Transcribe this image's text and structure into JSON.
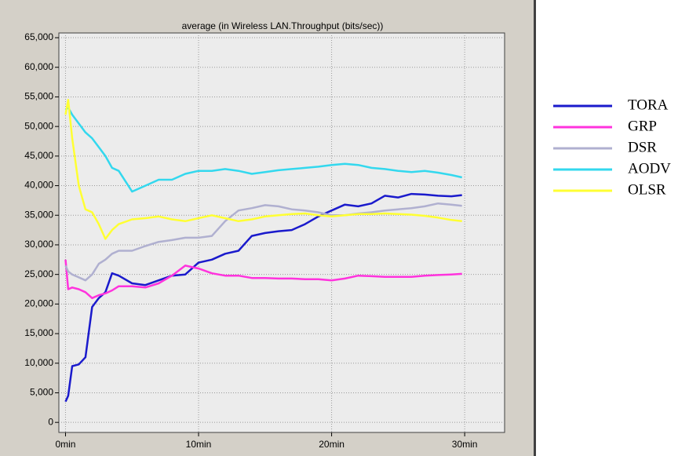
{
  "chart_data": {
    "type": "line",
    "title": "average (in Wireless LAN.Throughput (bits/sec))",
    "x": [
      0,
      0.2,
      0.5,
      1,
      1.5,
      2,
      2.5,
      3,
      3.5,
      4,
      5,
      6,
      7,
      8,
      9,
      10,
      11,
      12,
      13,
      14,
      15,
      16,
      17,
      18,
      19,
      20,
      21,
      22,
      23,
      24,
      25,
      26,
      27,
      28,
      29,
      29.8
    ],
    "series": [
      {
        "name": "TORA",
        "color": "#1a1acc",
        "values": [
          3500,
          4500,
          9500,
          9800,
          11000,
          19500,
          21000,
          22000,
          25200,
          24800,
          23500,
          23200,
          24000,
          24800,
          25000,
          27000,
          27500,
          28500,
          29000,
          31500,
          32000,
          32300,
          32500,
          33500,
          34800,
          35800,
          36800,
          36500,
          37000,
          38300,
          38000,
          38600,
          38500,
          38300,
          38200,
          38400
        ]
      },
      {
        "name": "GRP",
        "color": "#ff33dd",
        "values": [
          27500,
          22500,
          22800,
          22500,
          22000,
          21000,
          21500,
          21800,
          22300,
          23000,
          23000,
          22800,
          23500,
          24800,
          26500,
          26000,
          25200,
          24800,
          24800,
          24400,
          24400,
          24300,
          24300,
          24200,
          24200,
          24000,
          24300,
          24800,
          24700,
          24600,
          24600,
          24600,
          24800,
          24900,
          25000,
          25100
        ]
      },
      {
        "name": "DSR",
        "color": "#b0b0d0",
        "values": [
          26500,
          25500,
          25000,
          24500,
          24000,
          25000,
          26800,
          27500,
          28500,
          29000,
          29000,
          29800,
          30500,
          30800,
          31200,
          31200,
          31500,
          34000,
          35800,
          36200,
          36700,
          36500,
          36000,
          35800,
          35500,
          35000,
          35000,
          35300,
          35500,
          35800,
          36000,
          36200,
          36500,
          37000,
          36800,
          36600
        ]
      },
      {
        "name": "AODV",
        "color": "#33d8ee",
        "values": [
          52800,
          53200,
          52000,
          50500,
          49000,
          48000,
          46500,
          45000,
          43000,
          42500,
          39000,
          40000,
          41000,
          41000,
          42000,
          42500,
          42500,
          42800,
          42500,
          42000,
          42300,
          42600,
          42800,
          43000,
          43200,
          43500,
          43700,
          43500,
          43000,
          42800,
          42500,
          42300,
          42500,
          42200,
          41800,
          41400
        ]
      },
      {
        "name": "OLSR",
        "color": "#ffff33",
        "values": [
          52000,
          54500,
          48000,
          40000,
          36000,
          35500,
          33500,
          31000,
          32500,
          33500,
          34300,
          34500,
          34800,
          34300,
          34000,
          34500,
          35000,
          34500,
          34000,
          34300,
          34800,
          35000,
          35200,
          35300,
          35000,
          34800,
          35000,
          35200,
          35200,
          35300,
          35200,
          35100,
          34900,
          34600,
          34200,
          34000
        ]
      }
    ],
    "xlim": [
      -0.5,
      33
    ],
    "xticks": [
      {
        "value": 0,
        "label": "0min"
      },
      {
        "value": 10,
        "label": "10min"
      },
      {
        "value": 20,
        "label": "20min"
      },
      {
        "value": 30,
        "label": "30min"
      }
    ],
    "ylim": [
      -1700,
      65800
    ],
    "yticks": [
      0,
      {
        "value": 5000,
        "label": "5,000"
      },
      {
        "value": 10000,
        "label": "10,000"
      },
      {
        "value": 15000,
        "label": "15,000"
      },
      {
        "value": 20000,
        "label": "20,000"
      },
      {
        "value": 25000,
        "label": "25,000"
      },
      {
        "value": 30000,
        "label": "30,000"
      },
      {
        "value": 35000,
        "label": "35,000"
      },
      {
        "value": 40000,
        "label": "40,000"
      },
      {
        "value": 45000,
        "label": "45,000"
      },
      {
        "value": 50000,
        "label": "50,000"
      },
      {
        "value": 55000,
        "label": "55,000"
      },
      {
        "value": 60000,
        "label": "60,000"
      },
      {
        "value": 65000,
        "label": "65,000"
      }
    ],
    "grid": true
  }
}
